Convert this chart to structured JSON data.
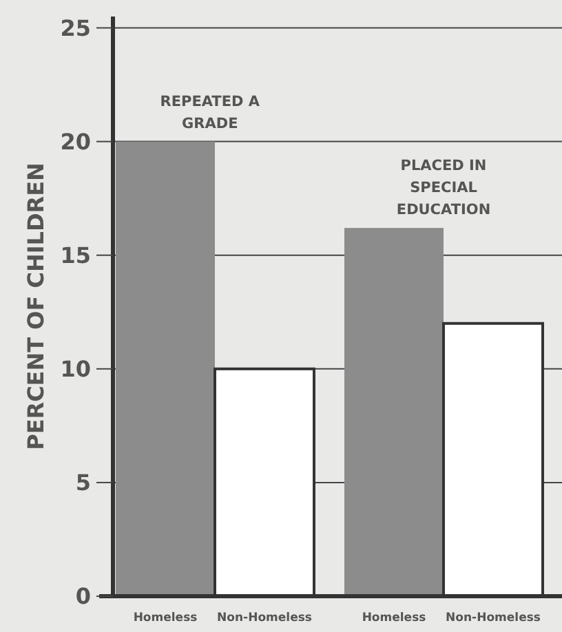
{
  "chart_data": {
    "type": "bar",
    "ylabel": "PERCENT OF CHILDREN",
    "categories": [
      "Homeless",
      "Non-Homeless",
      "Homeless",
      "Non-Homeless"
    ],
    "values": [
      20,
      10,
      16.2,
      12
    ],
    "colors": [
      "#8c8c8c",
      "#ffffff",
      "#8c8c8c",
      "#ffffff"
    ],
    "ylim": [
      0,
      25.5
    ],
    "yticks": [
      0,
      5,
      10,
      15,
      20,
      25
    ],
    "grid": "y",
    "annotations": [
      "REPEATED A GRADE",
      "PLACED IN SPECIAL EDUCATION"
    ]
  }
}
